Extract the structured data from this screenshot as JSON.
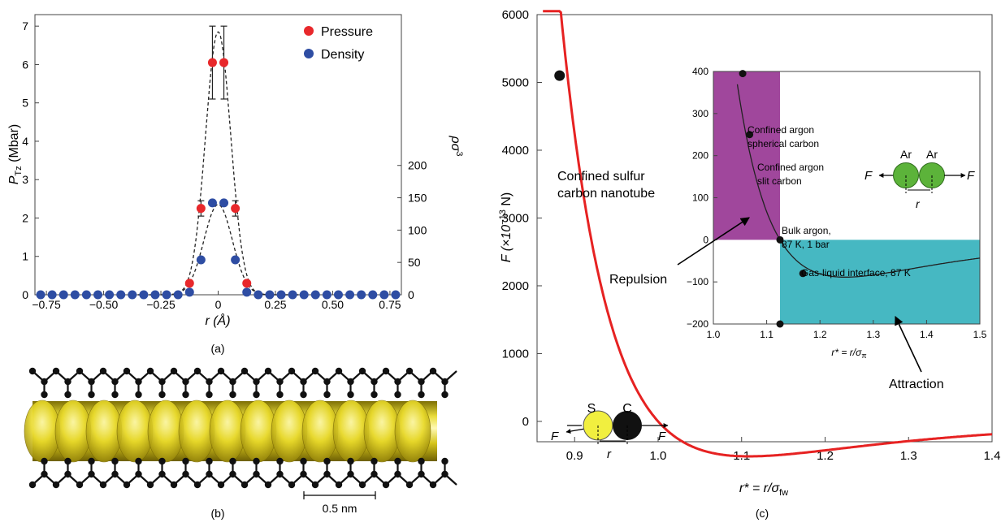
{
  "panel_labels": {
    "a": "(a)",
    "b": "(b)",
    "c": "(c)"
  },
  "colors": {
    "pressure": "#e8282b",
    "density": "#2e4da3",
    "main_curve": "#e62222",
    "repulsion_box": "#a0479c",
    "attraction_box": "#46b8c2",
    "argon_atom": "#5cb33a",
    "sulfur_atom": "#f1ef3f",
    "carbon_atom": "#111111"
  },
  "chart_data": [
    {
      "type": "scatter",
      "panel": "(a)",
      "xlabel": "r (Å)",
      "ylabel_left": "P",
      "ylabel_left_sub": "Tz",
      "ylabel_left_unit": " (Mbar)",
      "ylabel_right": "ρσ",
      "ylabel_right_sup": "3",
      "xlim": [
        -0.8,
        0.8
      ],
      "ylim_left": [
        0,
        7.3
      ],
      "ylim_right_mapping": {
        "0": 0,
        "200": 3.37
      },
      "xticks": [
        "-0.75",
        "-0.50",
        "-0.25",
        "0",
        "0.25",
        "0.50",
        "0.75"
      ],
      "xtick_values": [
        -0.75,
        -0.5,
        -0.25,
        0,
        0.25,
        0.5,
        0.75
      ],
      "yticks_left": [
        "0",
        "1",
        "2",
        "3",
        "4",
        "5",
        "6",
        "7"
      ],
      "yticks_right": [
        "0",
        "50",
        "100",
        "150",
        "200"
      ],
      "legend": [
        "Pressure",
        "Density"
      ],
      "legend_position": "top-right",
      "series": [
        {
          "name": "Pressure",
          "x": [
            -0.125,
            -0.075,
            -0.025,
            0.025,
            0.075,
            0.125
          ],
          "y": [
            0.3,
            2.25,
            6.05,
            6.05,
            2.25,
            0.3
          ],
          "error": [
            0,
            0.2,
            0.95,
            0.95,
            0.2,
            0
          ]
        },
        {
          "name": "Density",
          "x": [
            -0.775,
            -0.725,
            -0.675,
            -0.625,
            -0.575,
            -0.525,
            -0.475,
            -0.425,
            -0.375,
            -0.325,
            -0.275,
            -0.225,
            -0.175,
            -0.125,
            -0.075,
            -0.025,
            0.025,
            0.075,
            0.125,
            0.175,
            0.225,
            0.275,
            0.325,
            0.375,
            0.425,
            0.475,
            0.525,
            0.575,
            0.625,
            0.675,
            0.725,
            0.775
          ],
          "y_right_units": [
            0,
            0,
            0,
            0,
            0,
            0,
            0,
            0,
            0,
            0,
            0,
            0,
            0,
            4,
            54,
            142,
            142,
            54,
            4,
            0,
            0,
            0,
            0,
            0,
            0,
            0,
            0,
            0,
            0,
            0,
            0,
            0
          ]
        }
      ]
    },
    {
      "type": "line",
      "panel": "(c)",
      "xlabel": "r* = r/σ",
      "xlabel_sub": "fw",
      "ylabel": "F (×10",
      "ylabel_sup": "−13",
      "ylabel_tail": " N)",
      "xlim": [
        0.855,
        1.4
      ],
      "ylim": [
        -300,
        6000
      ],
      "xticks": [
        "0.9",
        "1.0",
        "1.1",
        "1.2",
        "1.3",
        "1.4"
      ],
      "xtick_values": [
        0.9,
        1.0,
        1.1,
        1.2,
        1.3,
        1.4
      ],
      "yticks": [
        "0",
        "1000",
        "2000",
        "3000",
        "4000",
        "5000",
        "6000"
      ],
      "ytick_values": [
        0,
        1000,
        2000,
        3000,
        4000,
        5000,
        6000
      ],
      "marked_point": {
        "x": 0.882,
        "y": 5100,
        "label_line1": "Confined sulfur",
        "label_line2": "carbon nanotube"
      },
      "annotations": {
        "repulsion": "Repulsion",
        "attraction": "Attraction"
      },
      "atom_diagram": {
        "left_label": "S",
        "right_label": "C",
        "force": "F",
        "distance": "r"
      },
      "inset": {
        "type": "line",
        "xlabel": "r* = r/σ",
        "xlabel_sub": "π",
        "xlim": [
          1.0,
          1.5
        ],
        "ylim": [
          -200,
          400
        ],
        "xticks": [
          "1.0",
          "1.1",
          "1.2",
          "1.3",
          "1.4",
          "1.5"
        ],
        "xtick_values": [
          1.0,
          1.1,
          1.2,
          1.3,
          1.4,
          1.5
        ],
        "yticks": [
          "-200",
          "-100",
          "0",
          "100",
          "200",
          "300",
          "400"
        ],
        "ytick_values": [
          -200,
          -100,
          0,
          100,
          200,
          300,
          400
        ],
        "points": [
          {
            "x": 1.055,
            "y": 395,
            "label_line1": "Confined argon",
            "label_line2": "spherical carbon"
          },
          {
            "x": 1.068,
            "y": 250,
            "label_line1": "Confined argon",
            "label_line2": "slit carbon"
          },
          {
            "x": 1.125,
            "y": 0,
            "label_line1": "Bulk argon,",
            "label_line2": "87 K, 1 bar"
          },
          {
            "x": 1.168,
            "y": -80,
            "label_line1": "Gas-liquid interface, 87 K",
            "label_line2": ""
          },
          {
            "x": 1.125,
            "y": -200,
            "label_line1": "",
            "label_line2": ""
          }
        ],
        "atom_diagram": {
          "left_label": "Ar",
          "right_label": "Ar",
          "force": "F",
          "distance": "r"
        }
      }
    }
  ],
  "panel_b": {
    "scale_bar": "0.5 nm"
  }
}
